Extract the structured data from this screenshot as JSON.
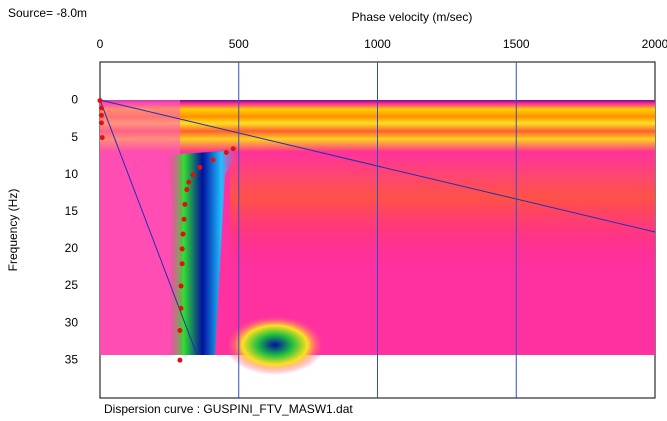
{
  "chart_data": {
    "type": "scatter",
    "title": "Phase velocity (m/sec)",
    "source_label": "Source= -8.0m",
    "ylabel": "Frequency (Hz)",
    "caption": "Dispersion curve : GUSPINI_FTV_MASW1.dat",
    "x": [
      0,
      5,
      5,
      5,
      8,
      480,
      455,
      407,
      360,
      335,
      320,
      313,
      306,
      303,
      299,
      296,
      296,
      292,
      292,
      288,
      288
    ],
    "values": [
      0,
      1,
      2,
      3,
      5,
      6.5,
      7,
      8,
      9,
      10,
      11,
      12,
      14,
      16,
      18,
      20,
      22,
      25,
      28,
      31,
      35
    ],
    "color": "#e01010",
    "xlim": [
      0,
      2000
    ],
    "xticks": [
      0,
      500,
      1000,
      1500,
      2000
    ],
    "ylim": [
      -5.2,
      40.1
    ],
    "yticks": [
      0,
      5,
      10,
      15,
      20,
      25,
      30,
      35
    ],
    "grid": true,
    "grid_color": "#3050c0"
  }
}
